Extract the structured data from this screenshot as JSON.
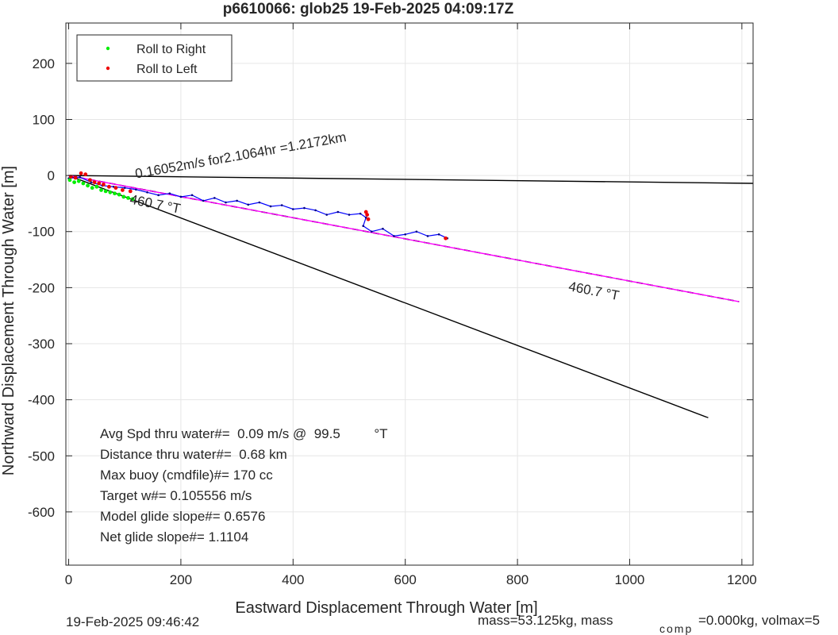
{
  "chart_data": {
    "type": "scatter",
    "title": "p6610066: glob25 19-Feb-2025 04:09:17Z",
    "xlabel": "Eastward Displacement Through Water [m]",
    "ylabel": "Northward Displacement Through Water [m]",
    "xlim": [
      -5,
      1220
    ],
    "ylim": [
      -695,
      272
    ],
    "xticks": [
      "0",
      "200",
      "400",
      "600",
      "800",
      "1000",
      "1200"
    ],
    "yticks": [
      "200",
      "100",
      "0",
      "-100",
      "-200",
      "-300",
      "-400",
      "-500",
      "-600"
    ],
    "grid": true,
    "legend": {
      "placement": "top-left",
      "entries": [
        {
          "label": "Roll to Right",
          "color": "#00ee00"
        },
        {
          "label": "Roll to Left",
          "color": "#ee0000"
        }
      ]
    },
    "lines": [
      {
        "role": "reference-line-1",
        "color": "#000000",
        "points": [
          [
            0,
            0
          ],
          [
            1220,
            -14
          ]
        ]
      },
      {
        "role": "reference-line-2",
        "color": "#000000",
        "points": [
          [
            0,
            0
          ],
          [
            1140,
            -432
          ]
        ]
      },
      {
        "role": "dashed-line",
        "color": "#000000",
        "dashed": true,
        "points": [
          [
            0,
            0
          ],
          [
            1195,
            -225
          ]
        ]
      },
      {
        "role": "magenta-line",
        "color": "#ff00ff",
        "points": [
          [
            0,
            0
          ],
          [
            1195,
            -225
          ]
        ]
      }
    ],
    "track": {
      "color": "#0000ff",
      "points": [
        [
          0,
          -5
        ],
        [
          20,
          -3
        ],
        [
          40,
          -12
        ],
        [
          60,
          -18
        ],
        [
          80,
          -20
        ],
        [
          100,
          -22
        ],
        [
          120,
          -25
        ],
        [
          140,
          -30
        ],
        [
          160,
          -35
        ],
        [
          180,
          -32
        ],
        [
          200,
          -38
        ],
        [
          220,
          -35
        ],
        [
          240,
          -45
        ],
        [
          260,
          -40
        ],
        [
          280,
          -48
        ],
        [
          300,
          -45
        ],
        [
          320,
          -52
        ],
        [
          340,
          -48
        ],
        [
          360,
          -55
        ],
        [
          380,
          -53
        ],
        [
          400,
          -60
        ],
        [
          420,
          -58
        ],
        [
          440,
          -62
        ],
        [
          460,
          -70
        ],
        [
          480,
          -65
        ],
        [
          500,
          -70
        ],
        [
          520,
          -68
        ],
        [
          530,
          -75
        ],
        [
          525,
          -90
        ],
        [
          540,
          -100
        ],
        [
          560,
          -95
        ],
        [
          580,
          -108
        ],
        [
          600,
          -105
        ],
        [
          620,
          -100
        ],
        [
          640,
          -108
        ],
        [
          660,
          -105
        ],
        [
          675,
          -112
        ]
      ]
    },
    "roll_markers": {
      "right": [
        [
          2,
          -8
        ],
        [
          10,
          -12
        ],
        [
          18,
          -10
        ],
        [
          26,
          -14
        ],
        [
          34,
          -18
        ],
        [
          42,
          -22
        ],
        [
          50,
          -20
        ],
        [
          58,
          -26
        ],
        [
          66,
          -28
        ],
        [
          74,
          -30
        ],
        [
          82,
          -32
        ],
        [
          90,
          -34
        ],
        [
          98,
          -38
        ],
        [
          106,
          -40
        ],
        [
          114,
          -42
        ]
      ],
      "left": [
        [
          4,
          -2
        ],
        [
          12,
          -4
        ],
        [
          22,
          4
        ],
        [
          30,
          2
        ],
        [
          38,
          -8
        ],
        [
          46,
          -12
        ],
        [
          54,
          -14
        ],
        [
          62,
          -16
        ],
        [
          72,
          -20
        ],
        [
          84,
          -22
        ],
        [
          96,
          -26
        ],
        [
          110,
          -28
        ],
        [
          530,
          -65
        ],
        [
          532,
          -70
        ],
        [
          534,
          -78
        ],
        [
          672,
          -112
        ]
      ]
    },
    "annotations": [
      {
        "text": "0.16052m/s for2.1064hr =1.2172km",
        "x": 120,
        "y": -5,
        "rotation": -10
      },
      {
        "text": "460.7 °T",
        "x": 108,
        "y": -50,
        "rotation": 11
      },
      {
        "text": "460.7 °T",
        "x": 890,
        "y": -205,
        "rotation": 11
      }
    ],
    "stats_lines": [
      "Avg Spd thru water#=  0.09 m/s @  99.5         °T",
      "Distance thru water#=  0.68 km",
      "Max buoy (cmdfile)#= 170 cc",
      "Target w#= 0.105556 m/s",
      "Model glide slope#= 0.6576",
      "Net glide slope#= 1.1104"
    ],
    "footer": {
      "timestamp": "19-Feb-2025 09:46:42",
      "mass_text": "mass=53.125kg, mass",
      "comp_subscript": "comp",
      "vol_text": "=0.000kg, volmax=5"
    }
  }
}
